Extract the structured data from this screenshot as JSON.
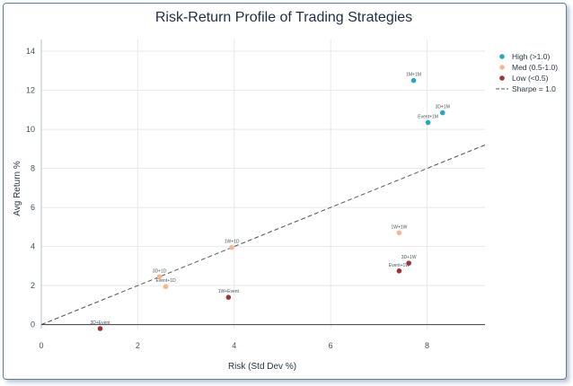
{
  "chart_data": {
    "type": "scatter",
    "title": "Risk-Return Profile of Trading Strategies",
    "xlabel": "Risk (Std Dev %)",
    "ylabel": "Avg Return %",
    "xlim": [
      0,
      9.2
    ],
    "ylim": [
      -0.2,
      14.6
    ],
    "xticks": [
      "0",
      "2",
      "4",
      "6",
      "8"
    ],
    "yticks": [
      "0",
      "2",
      "4",
      "6",
      "8",
      "10",
      "12",
      "14"
    ],
    "grid": true,
    "legend_position": "top-right",
    "series": [
      {
        "name": "High (>1.0)",
        "color": "#2aa7c0",
        "points": [
          {
            "label": "1M+1M",
            "x": 7.72,
            "y": 12.5
          },
          {
            "label": "3D+1M",
            "x": 8.32,
            "y": 10.85
          },
          {
            "label": "Event+1M",
            "x": 8.02,
            "y": 10.35
          }
        ]
      },
      {
        "name": "Med (0.5-1.0)",
        "color": "#f4b88c",
        "points": [
          {
            "label": "1W+1W",
            "x": 7.42,
            "y": 4.7
          },
          {
            "label": "1W+1D",
            "x": 3.95,
            "y": 3.95
          },
          {
            "label": "3D+1D",
            "x": 2.45,
            "y": 2.45
          },
          {
            "label": "Event+1D",
            "x": 2.58,
            "y": 1.95
          }
        ]
      },
      {
        "name": "Low (<0.5)",
        "color": "#a33236",
        "points": [
          {
            "label": "3D+1W",
            "x": 7.62,
            "y": 3.15
          },
          {
            "label": "Event+1W",
            "x": 7.42,
            "y": 2.75
          },
          {
            "label": "1W+Event",
            "x": 3.88,
            "y": 1.4
          },
          {
            "label": "3D+Event",
            "x": 1.22,
            "y": -0.2
          }
        ]
      }
    ],
    "reference_line": {
      "name": "Sharpe = 1.0",
      "slope": 1.0,
      "color": "#555555",
      "style": "dashed"
    }
  }
}
